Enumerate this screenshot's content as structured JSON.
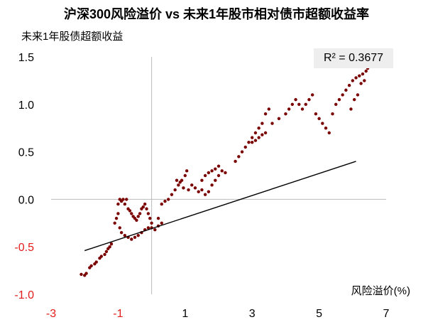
{
  "chart_data": {
    "type": "scatter",
    "title": "沪深300风险溢价 vs 未来1年股市相对债市超额收益率",
    "ylabel": "未来1年股债超额收益",
    "xlabel": "风险溢价(%)",
    "r2_label": "R² = 0.3677",
    "xlim": [
      -3,
      7
    ],
    "ylim": [
      -1.0,
      1.5
    ],
    "x_ticks": [
      {
        "label": "-3",
        "value": -3,
        "color": "#e31b1b"
      },
      {
        "label": "-1",
        "value": -1,
        "color": "#e31b1b"
      },
      {
        "label": "1",
        "value": 1,
        "color": "#000000"
      },
      {
        "label": "3",
        "value": 3,
        "color": "#000000"
      },
      {
        "label": "5",
        "value": 5,
        "color": "#000000"
      },
      {
        "label": "7",
        "value": 7,
        "color": "#000000"
      }
    ],
    "y_ticks": [
      {
        "label": "1.5",
        "value": 1.5,
        "color": "#000000"
      },
      {
        "label": "1.0",
        "value": 1.0,
        "color": "#000000"
      },
      {
        "label": "0.5",
        "value": 0.5,
        "color": "#000000"
      },
      {
        "label": "0.0",
        "value": 0.0,
        "color": "#000000"
      },
      {
        "label": "-0.5",
        "value": -0.5,
        "color": "#e31b1b"
      },
      {
        "label": "-1.0",
        "value": -1.0,
        "color": "#e31b1b"
      }
    ],
    "trendline": {
      "x": [
        -2.0,
        6.1
      ],
      "y": [
        -0.54,
        0.4
      ],
      "color": "#000000"
    },
    "point_color": "#7a0000",
    "series": [
      {
        "points": [
          [
            -2.1,
            -0.79
          ],
          [
            -2.0,
            -0.8
          ],
          [
            -1.95,
            -0.78
          ],
          [
            -1.85,
            -0.72
          ],
          [
            -1.8,
            -0.7
          ],
          [
            -1.7,
            -0.68
          ],
          [
            -1.65,
            -0.66
          ],
          [
            -1.55,
            -0.62
          ],
          [
            -1.5,
            -0.6
          ],
          [
            -1.4,
            -0.58
          ],
          [
            -1.35,
            -0.55
          ],
          [
            -1.3,
            -0.52
          ],
          [
            -1.25,
            -0.5
          ],
          [
            -1.2,
            -0.47
          ],
          [
            -1.1,
            -0.25
          ],
          [
            -1.05,
            -0.2
          ],
          [
            -1.0,
            -0.15
          ],
          [
            -1.0,
            -0.05
          ],
          [
            -0.95,
            0.0
          ],
          [
            -0.9,
            -0.02
          ],
          [
            -0.85,
            0.0
          ],
          [
            -0.8,
            -0.05
          ],
          [
            -0.75,
            0.0
          ],
          [
            -0.7,
            -0.1
          ],
          [
            -0.65,
            -0.12
          ],
          [
            -0.6,
            -0.15
          ],
          [
            -0.55,
            -0.18
          ],
          [
            -0.5,
            -0.2
          ],
          [
            -0.45,
            -0.22
          ],
          [
            -0.4,
            -0.18
          ],
          [
            -0.35,
            -0.15
          ],
          [
            -0.3,
            -0.1
          ],
          [
            -0.25,
            -0.08
          ],
          [
            -0.2,
            -0.05
          ],
          [
            -0.15,
            -0.1
          ],
          [
            -0.1,
            -0.15
          ],
          [
            -0.05,
            -0.2
          ],
          [
            0.0,
            -0.25
          ],
          [
            -0.95,
            -0.3
          ],
          [
            -0.9,
            -0.35
          ],
          [
            -0.8,
            -0.38
          ],
          [
            -0.7,
            -0.4
          ],
          [
            -0.6,
            -0.42
          ],
          [
            -0.5,
            -0.4
          ],
          [
            -0.4,
            -0.38
          ],
          [
            -0.3,
            -0.35
          ],
          [
            -0.2,
            -0.32
          ],
          [
            -0.1,
            -0.3
          ],
          [
            0.0,
            -0.3
          ],
          [
            0.1,
            -0.32
          ],
          [
            0.2,
            -0.28
          ],
          [
            0.3,
            -0.25
          ],
          [
            0.2,
            -0.2
          ],
          [
            0.3,
            -0.05
          ],
          [
            0.4,
            -0.02
          ],
          [
            0.5,
            0.0
          ],
          [
            0.6,
            0.05
          ],
          [
            0.7,
            0.1
          ],
          [
            0.8,
            0.15
          ],
          [
            0.9,
            0.2
          ],
          [
            1.0,
            0.25
          ],
          [
            1.05,
            0.3
          ],
          [
            0.75,
            0.2
          ],
          [
            0.85,
            0.18
          ],
          [
            0.95,
            0.12
          ],
          [
            1.1,
            0.1
          ],
          [
            1.2,
            0.15
          ],
          [
            1.3,
            0.12
          ],
          [
            1.4,
            0.08
          ],
          [
            1.5,
            0.1
          ],
          [
            1.6,
            0.05
          ],
          [
            1.7,
            0.08
          ],
          [
            1.8,
            0.15
          ],
          [
            1.9,
            0.2
          ],
          [
            2.0,
            0.25
          ],
          [
            1.5,
            0.2
          ],
          [
            1.6,
            0.25
          ],
          [
            1.7,
            0.28
          ],
          [
            1.8,
            0.3
          ],
          [
            1.9,
            0.32
          ],
          [
            2.0,
            0.35
          ],
          [
            2.1,
            0.3
          ],
          [
            2.2,
            0.28
          ],
          [
            2.5,
            0.4
          ],
          [
            2.6,
            0.45
          ],
          [
            2.7,
            0.5
          ],
          [
            2.8,
            0.55
          ],
          [
            2.9,
            0.6
          ],
          [
            3.0,
            0.65
          ],
          [
            3.1,
            0.7
          ],
          [
            3.2,
            0.75
          ],
          [
            3.3,
            0.8
          ],
          [
            3.4,
            0.9
          ],
          [
            3.5,
            0.95
          ],
          [
            3.0,
            0.6
          ],
          [
            3.1,
            0.62
          ],
          [
            3.2,
            0.65
          ],
          [
            3.3,
            0.68
          ],
          [
            3.4,
            0.7
          ],
          [
            3.6,
            0.8
          ],
          [
            3.8,
            0.85
          ],
          [
            4.0,
            0.9
          ],
          [
            4.1,
            0.95
          ],
          [
            4.2,
            1.0
          ],
          [
            4.3,
            1.05
          ],
          [
            4.4,
            1.0
          ],
          [
            4.5,
            0.95
          ],
          [
            4.6,
            1.0
          ],
          [
            4.7,
            1.05
          ],
          [
            4.8,
            1.1
          ],
          [
            4.9,
            0.9
          ],
          [
            5.0,
            0.85
          ],
          [
            5.1,
            0.8
          ],
          [
            5.2,
            0.75
          ],
          [
            5.3,
            0.7
          ],
          [
            5.4,
            0.9
          ],
          [
            5.5,
            1.0
          ],
          [
            5.6,
            1.05
          ],
          [
            5.7,
            1.1
          ],
          [
            5.8,
            1.15
          ],
          [
            5.9,
            1.2
          ],
          [
            6.0,
            1.25
          ],
          [
            6.1,
            1.28
          ],
          [
            6.2,
            1.3
          ],
          [
            6.3,
            1.32
          ],
          [
            6.4,
            1.35
          ],
          [
            6.45,
            1.38
          ],
          [
            6.5,
            1.4
          ],
          [
            6.35,
            1.25
          ],
          [
            6.25,
            1.22
          ],
          [
            6.15,
            1.1
          ],
          [
            6.05,
            1.05
          ],
          [
            5.95,
            0.95
          ]
        ]
      }
    ]
  }
}
